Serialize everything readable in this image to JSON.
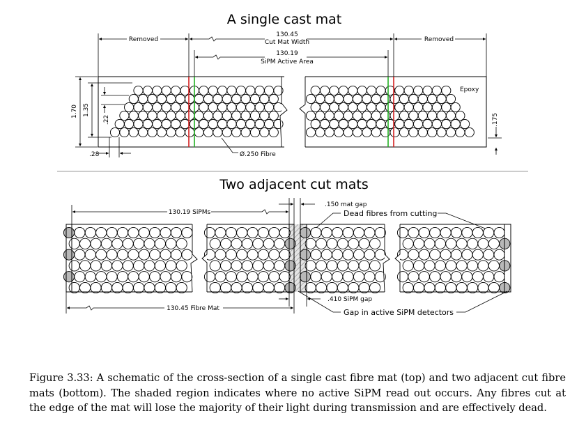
{
  "top": {
    "title": "A single cast mat",
    "removed_left": "Removed",
    "removed_right": "Removed",
    "cut_width_value": "130.45",
    "cut_width_label": "Cut Mat Width",
    "active_value": "130.19",
    "active_label": "SiPM Active Area",
    "epoxy": "Epoxy",
    "height_total": "1.70",
    "height_pitch": "1.35",
    "row_offset": ".22",
    "col_offset": ".28",
    "edge_offset": ".175",
    "fibre": "Ø.250 Fibre"
  },
  "bottom": {
    "title": "Two adjacent cut mats",
    "sipms": "130.19 SiPMs",
    "mat_gap": ".150 mat gap",
    "dead_fibres": "Dead fibres from cutting",
    "sipm_gap": ".410 SiPM gap",
    "gap_active": "Gap in active SiPM detectors",
    "fibre_mat": "130.45 Fibre Mat"
  },
  "colors": {
    "red_line": "#d42020",
    "green_line": "#22b022",
    "dead_fill": "#b8b8b8"
  },
  "caption": "Figure 3.33: A schematic of the cross-section of a single cast fibre mat (top) and two adjacent cut fibre mats (bottom). The shaded region indicates where no active SiPM read out occurs. Any fibres cut at the edge of the mat will lose the majority of their light during transmission and are effectively dead."
}
